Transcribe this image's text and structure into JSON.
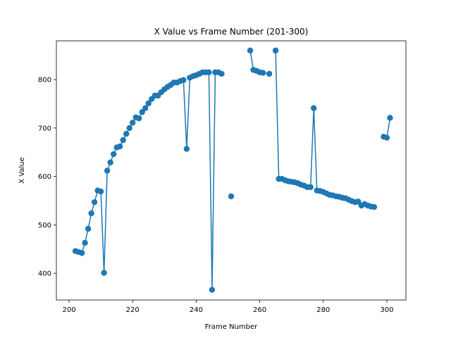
{
  "chart_data": {
    "type": "line",
    "title": "X Value vs Frame Number (201-300)",
    "xlabel": "Frame Number",
    "ylabel": "X Value",
    "xlim": [
      196,
      306
    ],
    "ylim": [
      345,
      880
    ],
    "xticks": [
      200,
      220,
      240,
      260,
      280,
      300
    ],
    "yticks": [
      400,
      500,
      600,
      700,
      800
    ],
    "grid": false,
    "series_color": "#1f77b4",
    "series": [
      {
        "segments": [
          [
            [
              202,
              446
            ],
            [
              203,
              444
            ],
            [
              204,
              442
            ],
            [
              205,
              463
            ],
            [
              206,
              492
            ],
            [
              207,
              524
            ],
            [
              208,
              547
            ],
            [
              209,
              571
            ],
            [
              210,
              569
            ],
            [
              211,
              401
            ],
            [
              212,
              612
            ],
            [
              213,
              629
            ],
            [
              214,
              646
            ],
            [
              215,
              660
            ],
            [
              216,
              662
            ],
            [
              217,
              675
            ],
            [
              218,
              688
            ],
            [
              219,
              700
            ],
            [
              220,
              711
            ],
            [
              221,
              722
            ],
            [
              222,
              720
            ],
            [
              223,
              733
            ],
            [
              224,
              741
            ],
            [
              225,
              751
            ],
            [
              226,
              760
            ],
            [
              227,
              767
            ],
            [
              228,
              767
            ],
            [
              229,
              774
            ],
            [
              230,
              780
            ],
            [
              231,
              785
            ],
            [
              232,
              789
            ],
            [
              233,
              794
            ],
            [
              234,
              794
            ],
            [
              235,
              797
            ],
            [
              236,
              799
            ],
            [
              237,
              657
            ],
            [
              238,
              804
            ],
            [
              239,
              807
            ],
            [
              240,
              809
            ],
            [
              241,
              812
            ],
            [
              242,
              815
            ],
            [
              243,
              815
            ],
            [
              244,
              815
            ],
            [
              245,
              366
            ],
            [
              246,
              815
            ],
            [
              247,
              815
            ],
            [
              248,
              812
            ]
          ],
          [
            [
              251,
              559
            ]
          ],
          [
            [
              257,
              860
            ],
            [
              258,
              820
            ],
            [
              259,
              818
            ],
            [
              260,
              815
            ],
            [
              261,
              814
            ],
            [
              263,
              812
            ]
          ],
          [
            [
              265,
              860
            ],
            [
              266,
              595
            ],
            [
              267,
              595
            ],
            [
              268,
              592
            ],
            [
              269,
              590
            ],
            [
              270,
              589
            ],
            [
              271,
              588
            ],
            [
              272,
              586
            ],
            [
              273,
              583
            ],
            [
              274,
              581
            ],
            [
              275,
              578
            ],
            [
              276,
              578
            ],
            [
              277,
              741
            ],
            [
              278,
              571
            ],
            [
              279,
              570
            ],
            [
              280,
              568
            ],
            [
              281,
              565
            ],
            [
              282,
              562
            ],
            [
              283,
              561
            ],
            [
              284,
              559
            ],
            [
              285,
              558
            ],
            [
              286,
              556
            ],
            [
              287,
              555
            ],
            [
              288,
              552
            ],
            [
              289,
              549
            ],
            [
              290,
              547
            ],
            [
              291,
              548
            ],
            [
              292,
              540
            ],
            [
              293,
              543
            ],
            [
              294,
              540
            ],
            [
              295,
              538
            ],
            [
              296,
              537
            ]
          ],
          [
            [
              299,
              682
            ],
            [
              300,
              680
            ],
            [
              301,
              721
            ]
          ]
        ]
      }
    ]
  }
}
